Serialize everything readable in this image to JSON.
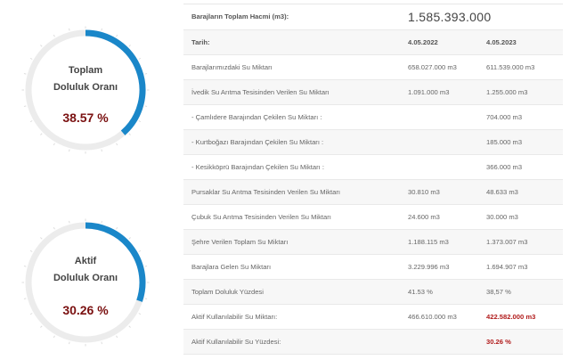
{
  "gauges": [
    {
      "label_line1": "Toplam",
      "label_line2": "Doluluk Oranı",
      "value_text": "38.57 %",
      "percent": 38.57
    },
    {
      "label_line1": "Aktif",
      "label_line2": "Doluluk Oranı",
      "value_text": "30.26 %",
      "percent": 30.26
    }
  ],
  "colors": {
    "arc": "#1a87c9",
    "track": "#ececec",
    "value": "#7a1010",
    "highlight": "#b11b1b"
  },
  "table": {
    "header": {
      "label": "Barajların Toplam Hacmi (m3):",
      "value": "1.585.393.000"
    },
    "columns": {
      "label": "Tarih:",
      "col1": "4.05.2022",
      "col2": "4.05.2023"
    },
    "rows": [
      {
        "label": "Barajlarımızdaki Su Miktarı",
        "v1": "658.027.000 m3",
        "v2": "611.539.000 m3"
      },
      {
        "label": "İvedik Su Arıtma Tesisinden Verilen Su Miktarı",
        "v1": "1.091.000 m3",
        "v2": "1.255.000 m3"
      },
      {
        "label": "- Çamlıdere Barajından Çekilen Su Miktarı :",
        "v1": "",
        "v2": "704.000 m3"
      },
      {
        "label": "- Kurtboğazı Barajından Çekilen Su Miktarı :",
        "v1": "",
        "v2": "185.000 m3"
      },
      {
        "label": "- Kesikköprü Barajından Çekilen Su Miktarı :",
        "v1": "",
        "v2": "366.000 m3"
      },
      {
        "label": "Pursaklar Su Arıtma Tesisinden Verilen Su Miktarı",
        "v1": "30.810 m3",
        "v2": "48.633 m3"
      },
      {
        "label": "Çubuk Su Arıtma Tesisinden Verilen Su Miktarı",
        "v1": "24.600 m3",
        "v2": "30.000 m3"
      },
      {
        "label": "Şehre Verilen Toplam Su Miktarı",
        "v1": "1.188.115 m3",
        "v2": "1.373.007 m3"
      },
      {
        "label": "Barajlara Gelen Su Miktarı",
        "v1": "3.229.996 m3",
        "v2": "1.694.907 m3"
      },
      {
        "label": "Toplam Doluluk Yüzdesi",
        "v1": "41.53 %",
        "v2": "38,57 %"
      },
      {
        "label": "Aktif Kullanılabilir Su Miktarı:",
        "v1": "466.610.000 m3",
        "v2": "422.582.000 m3"
      },
      {
        "label": "Aktif Kullanılabilir Su Yüzdesi:",
        "v1": "",
        "v2": "30.26 %"
      }
    ]
  }
}
